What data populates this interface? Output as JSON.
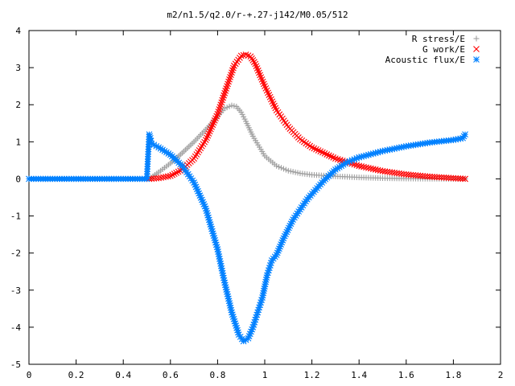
{
  "chart_data": {
    "type": "scatter",
    "title": "m2/n1.5/q2.0/r-+.27-j142/M0.05/512",
    "xlabel": "",
    "ylabel": "",
    "xlim": [
      0,
      2
    ],
    "ylim": [
      -5,
      4
    ],
    "x_ticks": [
      "0",
      "0.2",
      "0.4",
      "0.6",
      "0.8",
      "1",
      "1.2",
      "1.4",
      "1.6",
      "1.8",
      "2"
    ],
    "y_ticks": [
      "4",
      "3",
      "2",
      "1",
      "0",
      "-1",
      "-2",
      "-3",
      "-4",
      "-5"
    ],
    "grid": false,
    "legend_position": "top-right",
    "series": [
      {
        "name": "R stress/E",
        "marker": "plus",
        "color": "#a0a0a0",
        "x": [
          0.51,
          0.55,
          0.6,
          0.65,
          0.7,
          0.75,
          0.8,
          0.83,
          0.86,
          0.88,
          0.9,
          0.92,
          0.95,
          1.0,
          1.05,
          1.1,
          1.15,
          1.2,
          1.3,
          1.4,
          1.5,
          1.6,
          1.7,
          1.8,
          1.85
        ],
        "y": [
          0.0,
          0.18,
          0.42,
          0.7,
          1.0,
          1.33,
          1.68,
          1.9,
          1.98,
          1.95,
          1.8,
          1.55,
          1.15,
          0.62,
          0.35,
          0.22,
          0.15,
          0.11,
          0.07,
          0.04,
          0.02,
          0.01,
          0.005,
          0.0,
          0.0
        ]
      },
      {
        "name": "G work/E",
        "marker": "cross",
        "color": "#ff0000",
        "x": [
          0.51,
          0.55,
          0.6,
          0.65,
          0.7,
          0.75,
          0.8,
          0.84,
          0.87,
          0.9,
          0.92,
          0.94,
          0.96,
          1.0,
          1.05,
          1.1,
          1.15,
          1.2,
          1.3,
          1.4,
          1.5,
          1.6,
          1.7,
          1.8,
          1.85
        ],
        "y": [
          0.0,
          0.02,
          0.08,
          0.25,
          0.55,
          1.05,
          1.75,
          2.5,
          3.05,
          3.32,
          3.35,
          3.3,
          3.1,
          2.5,
          1.85,
          1.4,
          1.07,
          0.85,
          0.55,
          0.35,
          0.21,
          0.12,
          0.06,
          0.02,
          0.0
        ]
      },
      {
        "name": "Acoustic flux/E",
        "marker": "star",
        "color": "#0080ff",
        "x": [
          0.0,
          0.1,
          0.2,
          0.3,
          0.4,
          0.5,
          0.51,
          0.515,
          0.52,
          0.55,
          0.6,
          0.65,
          0.7,
          0.75,
          0.8,
          0.83,
          0.86,
          0.89,
          0.91,
          0.93,
          0.95,
          0.97,
          0.99,
          1.0,
          1.01,
          1.02,
          1.03,
          1.05,
          1.08,
          1.12,
          1.18,
          1.25,
          1.3,
          1.35,
          1.4,
          1.5,
          1.6,
          1.7,
          1.8,
          1.84,
          1.85
        ],
        "y": [
          0.0,
          0.0,
          0.0,
          0.0,
          0.0,
          0.0,
          1.2,
          1.1,
          0.95,
          0.85,
          0.65,
          0.35,
          -0.1,
          -0.8,
          -1.9,
          -2.8,
          -3.6,
          -4.2,
          -4.38,
          -4.3,
          -4.0,
          -3.6,
          -3.2,
          -2.9,
          -2.6,
          -2.4,
          -2.2,
          -2.05,
          -1.6,
          -1.1,
          -0.55,
          -0.05,
          0.25,
          0.45,
          0.58,
          0.75,
          0.88,
          0.98,
          1.05,
          1.1,
          1.2
        ]
      }
    ]
  }
}
